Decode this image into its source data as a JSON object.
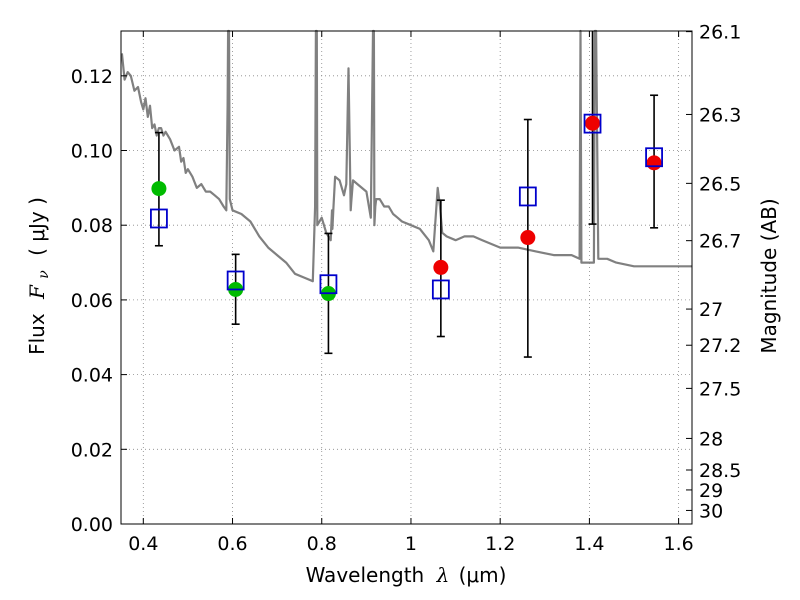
{
  "chart_data": {
    "type": "scatter",
    "title": "",
    "xlabel": "Wavelength",
    "xlabel_symbol": "λ",
    "xlabel_unit": "(μm)",
    "ylabel": "Flux",
    "ylabel_symbol": "F",
    "ylabel_subscript": "ν",
    "ylabel_unit": "( μJy )",
    "y2label": "Magnitude (AB)",
    "xlim": [
      0.35,
      1.63
    ],
    "ylim": [
      0.0,
      0.132
    ],
    "grid": true,
    "grid_style": "dotted",
    "x_ticks": [
      0.4,
      0.6,
      0.8,
      1.0,
      1.2,
      1.4,
      1.6
    ],
    "x_tick_labels": [
      "0.4",
      "0.6",
      "0.8",
      "1",
      "1.2",
      "1.4",
      "1.6"
    ],
    "y_ticks": [
      0.0,
      0.02,
      0.04,
      0.06,
      0.08,
      0.1,
      0.12
    ],
    "y_tick_labels": [
      "0.00",
      "0.02",
      "0.04",
      "0.06",
      "0.08",
      "0.10",
      "0.12"
    ],
    "y2_ticks": [
      26.1,
      26.3,
      26.5,
      26.7,
      27.0,
      27.2,
      27.5,
      28.0,
      28.5,
      29.0,
      30.0
    ],
    "y2_tick_labels": [
      "26.1",
      "26.3",
      "26.5",
      "26.7",
      "27",
      "27.2",
      "27.5",
      "28",
      "28.5",
      "29",
      "30"
    ],
    "colors": {
      "model": "#808080",
      "green": "#00bb00",
      "red": "#ee0000",
      "model_box": "#0000cc",
      "errorbar": "#000000",
      "grid": "#888888"
    },
    "model_spectrum": {
      "x": [
        0.352,
        0.358,
        0.365,
        0.372,
        0.38,
        0.388,
        0.395,
        0.4,
        0.405,
        0.41,
        0.415,
        0.42,
        0.425,
        0.43,
        0.435,
        0.44,
        0.445,
        0.45,
        0.46,
        0.47,
        0.48,
        0.485,
        0.49,
        0.495,
        0.5,
        0.51,
        0.52,
        0.53,
        0.54,
        0.55,
        0.56,
        0.57,
        0.58,
        0.586,
        0.589,
        0.59,
        0.592,
        0.594,
        0.6,
        0.62,
        0.64,
        0.66,
        0.68,
        0.7,
        0.72,
        0.74,
        0.76,
        0.78,
        0.785,
        0.787,
        0.789,
        0.79,
        0.8,
        0.81,
        0.82,
        0.823,
        0.824,
        0.826,
        0.83,
        0.84,
        0.85,
        0.855,
        0.86,
        0.865,
        0.866,
        0.87,
        0.88,
        0.89,
        0.9,
        0.91,
        0.915,
        0.917,
        0.918,
        0.92,
        0.922,
        0.93,
        0.94,
        0.95,
        0.96,
        0.97,
        0.98,
        1.0,
        1.02,
        1.04,
        1.05,
        1.06,
        1.065,
        1.07,
        1.08,
        1.1,
        1.12,
        1.14,
        1.16,
        1.2,
        1.24,
        1.28,
        1.32,
        1.36,
        1.378,
        1.38,
        1.382,
        1.4,
        1.41,
        1.412,
        1.415,
        1.42,
        1.44,
        1.46,
        1.5,
        1.54,
        1.58,
        1.63
      ],
      "y": [
        0.126,
        0.119,
        0.121,
        0.12,
        0.116,
        0.117,
        0.113,
        0.111,
        0.114,
        0.109,
        0.112,
        0.106,
        0.107,
        0.104,
        0.106,
        0.106,
        0.104,
        0.105,
        0.103,
        0.1,
        0.101,
        0.097,
        0.098,
        0.094,
        0.095,
        0.093,
        0.09,
        0.091,
        0.089,
        0.089,
        0.088,
        0.087,
        0.085,
        0.084,
        0.112,
        0.132,
        0.132,
        0.087,
        0.084,
        0.083,
        0.081,
        0.077,
        0.074,
        0.072,
        0.07,
        0.067,
        0.066,
        0.065,
        0.085,
        0.132,
        0.132,
        0.08,
        0.082,
        0.078,
        0.076,
        0.084,
        0.079,
        0.084,
        0.093,
        0.092,
        0.088,
        0.091,
        0.122,
        0.084,
        0.086,
        0.092,
        0.091,
        0.09,
        0.089,
        0.082,
        0.132,
        0.132,
        0.08,
        0.085,
        0.087,
        0.087,
        0.085,
        0.085,
        0.083,
        0.082,
        0.081,
        0.08,
        0.079,
        0.076,
        0.073,
        0.09,
        0.085,
        0.078,
        0.077,
        0.076,
        0.077,
        0.077,
        0.076,
        0.074,
        0.074,
        0.073,
        0.072,
        0.072,
        0.071,
        0.132,
        0.07,
        0.07,
        0.07,
        0.132,
        0.132,
        0.071,
        0.071,
        0.07,
        0.069,
        0.069,
        0.069,
        0.069
      ]
    },
    "green_points": {
      "x": [
        0.435,
        0.607,
        0.815
      ],
      "y": [
        0.0898,
        0.0628,
        0.0617
      ]
    },
    "red_points": {
      "x": [
        1.067,
        1.262,
        1.407,
        1.545
      ],
      "y": [
        0.0687,
        0.0767,
        0.1073,
        0.0967
      ]
    },
    "model_boxes": {
      "x": [
        0.435,
        0.607,
        0.815,
        1.067,
        1.262,
        1.407,
        1.545
      ],
      "y": [
        0.0818,
        0.0652,
        0.0642,
        0.0628,
        0.0877,
        0.1072,
        0.0982
      ]
    },
    "errorbars": [
      {
        "x": 0.435,
        "lo": 0.0745,
        "hi": 0.1048
      },
      {
        "x": 0.607,
        "lo": 0.0535,
        "hi": 0.0722
      },
      {
        "x": 0.815,
        "lo": 0.0457,
        "hi": 0.0778
      },
      {
        "x": 1.067,
        "lo": 0.0502,
        "hi": 0.0867
      },
      {
        "x": 1.262,
        "lo": 0.0447,
        "hi": 0.1083
      },
      {
        "x": 1.407,
        "lo": 0.0803,
        "hi": 0.132
      },
      {
        "x": 1.545,
        "lo": 0.0793,
        "hi": 0.1148
      }
    ]
  }
}
